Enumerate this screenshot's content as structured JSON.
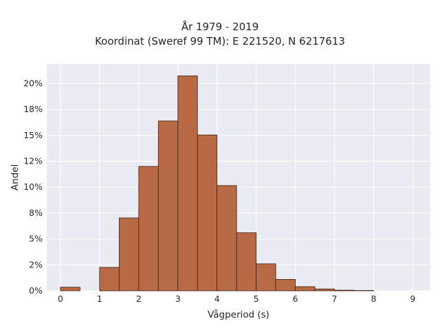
{
  "chart_data": {
    "type": "bar",
    "title": "År 1979 - 2019",
    "subtitle": "Koordinat (Sweref 99 TM): E 221520, N 6217613",
    "xlabel": "Vågperiod (s)",
    "ylabel": "Andel",
    "xlim": [
      -0.35,
      9.45
    ],
    "ylim": [
      0,
      0.2188
    ],
    "grid": true,
    "x_ticks": [
      0,
      1,
      2,
      3,
      4,
      5,
      6,
      7,
      8,
      9
    ],
    "x_tick_labels": [
      "0",
      "1",
      "2",
      "3",
      "4",
      "5",
      "6",
      "7",
      "8",
      "9"
    ],
    "y_ticks": [
      0,
      0.025,
      0.05,
      0.075,
      0.1,
      0.125,
      0.15,
      0.175,
      0.2
    ],
    "y_tick_labels": [
      "0%",
      "2%",
      "5%",
      "8%",
      "10%",
      "12%",
      "15%",
      "18%",
      "20%"
    ],
    "bin_width": 0.5,
    "bin_starts": [
      0,
      0.5,
      1,
      1.5,
      2,
      2.5,
      3,
      3.5,
      4,
      4.5,
      5,
      5.5,
      6,
      6.5,
      7,
      7.5
    ],
    "values": [
      0.0035,
      0,
      0.0226,
      0.0703,
      0.12,
      0.1638,
      0.2073,
      0.1503,
      0.1015,
      0.056,
      0.026,
      0.011,
      0.004,
      0.0018,
      0.0006,
      0.0003
    ],
    "bar_color": "#b86a45",
    "bar_edge_color": "#3d2015",
    "background_color": "#eaeaf2",
    "grid_color": "#ffffff"
  }
}
